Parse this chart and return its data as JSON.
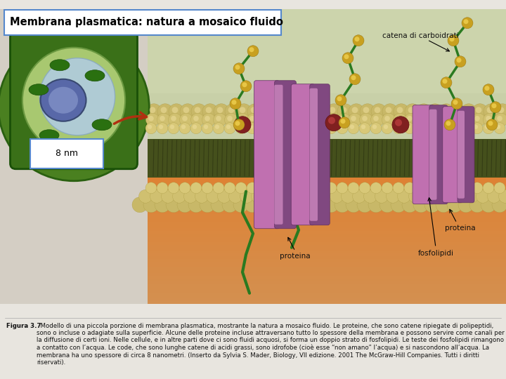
{
  "title": "Membrana plasmatica: natura a mosaico fluido",
  "title_box_color": "#ffffff",
  "title_box_edge": "#5588cc",
  "title_fontsize": 10.5,
  "label_8nm_fontsize": 9,
  "label_catena_fontsize": 7.5,
  "label_fontsize": 7.5,
  "bg_color": "#e8e5df",
  "img_bg_color": "#ddd8cc",
  "figura_text_bold": "Figura 3.7",
  "figura_text_rest": "  Modello di una piccola porzione di membrana plasmatica, mostrante la natura a mosaico fluido. Le proteine, che sono catene ripiegate di polipeptidi, sono o incluse o adagiate sulla superficie. Alcune delle proteine incluse attraversano tutto lo spessore della membrana e possono servire come canali per la diffusione di certi ioni. Nelle cellule, e in altre parti dove ci sono fluidi acquosi, si forma un doppio strato di fosfolipidi. Le teste dei fosfolipidi rimangono a contatto con l’acqua. Le code, che sono lunghe catene di acidi grassi, sono idrofobe (cioè esse “non amano” l’acqua) e si nascondono all’acqua. La membrana ha uno spessore di circa 8 nanometri. (Inserto da Sylvia S. Mader, Biology, VII edizione. 2001 The McGraw-Hill Companies. Tutti i diritti riservati).",
  "figura_fontsize": 6.2,
  "ext_color": "#c8d4a0",
  "ext_color2": "#b8c890",
  "intra_color": "#d4a060",
  "membrane_dark": "#4a5020",
  "head_color": "#d8c878",
  "head_color2": "#e8d888",
  "prot_color": "#c070b0",
  "prot_dark": "#804880",
  "prot_light": "#d890c8",
  "sphere_color": "#802020",
  "bead_color": "#c8a020",
  "bead_light": "#e8c040",
  "green_chain": "#2a7a20",
  "cell_green": "#3a7a20",
  "cell_green_dark": "#1a5a10",
  "cell_inner": "#90c060",
  "vacuole_color": "#a0c8e0",
  "nucleus_color": "#6878b0",
  "arrow_color": "#b03010"
}
